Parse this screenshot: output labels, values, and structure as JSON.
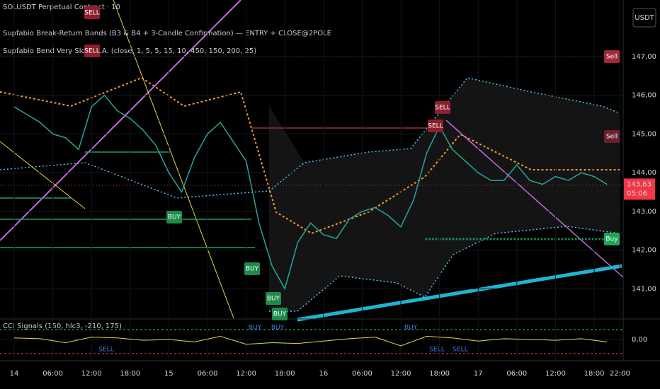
{
  "chart_data": [
    {
      "type": "line",
      "title": "SOLUSDT Perpetual Contract · 10",
      "indicators": [
        "Supfabio Break-Return Bands (B3 & B4 + 3-Candle Confirmation) — ENTRY + CLOSE@2POLE",
        "Supfabio Bend Very Slow M.A. (close, 1, 5, 5, 15, 10, 450, 150, 200, 25)"
      ],
      "currency": "USDT",
      "x": [
        0,
        2,
        4,
        6,
        8,
        10,
        12,
        14,
        16,
        18,
        20,
        22,
        24,
        26,
        28,
        30,
        32,
        34,
        36,
        38,
        40,
        42,
        44,
        46,
        48,
        50,
        52,
        54,
        56,
        58,
        60,
        62,
        64,
        66,
        68,
        70,
        72,
        74,
        76,
        78,
        80,
        82,
        84,
        86,
        88,
        90,
        92
      ],
      "values": [
        145.7,
        145.5,
        145.3,
        145.0,
        144.9,
        144.6,
        145.7,
        146.0,
        145.6,
        145.4,
        145.1,
        144.7,
        144.0,
        143.5,
        144.4,
        145.0,
        145.3,
        144.8,
        144.3,
        142.7,
        141.6,
        141.0,
        142.2,
        142.7,
        142.4,
        142.3,
        142.8,
        143.0,
        143.1,
        142.9,
        142.6,
        143.3,
        144.5,
        145.2,
        144.6,
        144.3,
        144.0,
        143.8,
        143.8,
        144.2,
        143.8,
        143.7,
        143.9,
        143.8,
        144.0,
        143.9,
        143.7
      ],
      "color": "#26a69a",
      "xlim": [
        -2.2,
        94.5
      ],
      "xticks": [
        {
          "value": 0,
          "label": "14"
        },
        {
          "value": 6,
          "label": "06:00"
        },
        {
          "value": 12,
          "label": "12:00"
        },
        {
          "value": 18,
          "label": "18:00"
        },
        {
          "value": 24,
          "label": "15"
        },
        {
          "value": 30,
          "label": "06:00"
        },
        {
          "value": 36,
          "label": "12:00"
        },
        {
          "value": 42,
          "label": "18:00"
        },
        {
          "value": 48,
          "label": "16"
        },
        {
          "value": 54,
          "label": "06:00"
        },
        {
          "value": 60,
          "label": "12:00"
        },
        {
          "value": 66,
          "label": "18:00"
        },
        {
          "value": 72,
          "label": "17"
        },
        {
          "value": 78,
          "label": "06:00"
        },
        {
          "value": 84,
          "label": "12:00"
        },
        {
          "value": 90,
          "label": "18:00"
        },
        {
          "value": 94,
          "label": "22:00"
        }
      ],
      "ylim": [
        140.24,
        148.46
      ],
      "yticks": [
        {
          "value": 141,
          "label": "141,00"
        },
        {
          "value": 142,
          "label": "142,00"
        },
        {
          "value": 143,
          "label": "143,00"
        },
        {
          "value": 144,
          "label": "144,00"
        },
        {
          "value": 145,
          "label": "145,00"
        },
        {
          "value": 146,
          "label": "146,00"
        },
        {
          "value": 147,
          "label": "147,00"
        }
      ],
      "current_price": {
        "value": 143.63,
        "label": "143,63"
      },
      "countdown": "05:06",
      "signals": [
        "SELL",
        "SELL",
        "SELL",
        "SELL",
        "BUY",
        "BUY",
        "BUY",
        "BUY",
        "Sell",
        "Sell",
        "Buy"
      ]
    },
    {
      "type": "line",
      "title": "CCI Signals (150, hlc3, -210, 175)",
      "x": [
        0,
        4,
        8,
        12,
        16,
        20,
        24,
        28,
        32,
        36,
        40,
        44,
        48,
        52,
        56,
        60,
        64,
        68,
        72,
        76,
        80,
        84,
        88,
        92
      ],
      "values": [
        20,
        10,
        -40,
        30,
        20,
        -10,
        0,
        -30,
        40,
        -60,
        -40,
        -50,
        -20,
        10,
        30,
        -80,
        40,
        20,
        -20,
        10,
        0,
        -10,
        10,
        -30
      ],
      "color": "#e8d44d",
      "ylim": [
        -250,
        250
      ],
      "yticks": [
        {
          "value": 0,
          "label": "0,00"
        }
      ],
      "signals": [
        "SELL",
        "BUY",
        "BUY",
        "BUY",
        "SELL",
        "SELL"
      ]
    }
  ]
}
